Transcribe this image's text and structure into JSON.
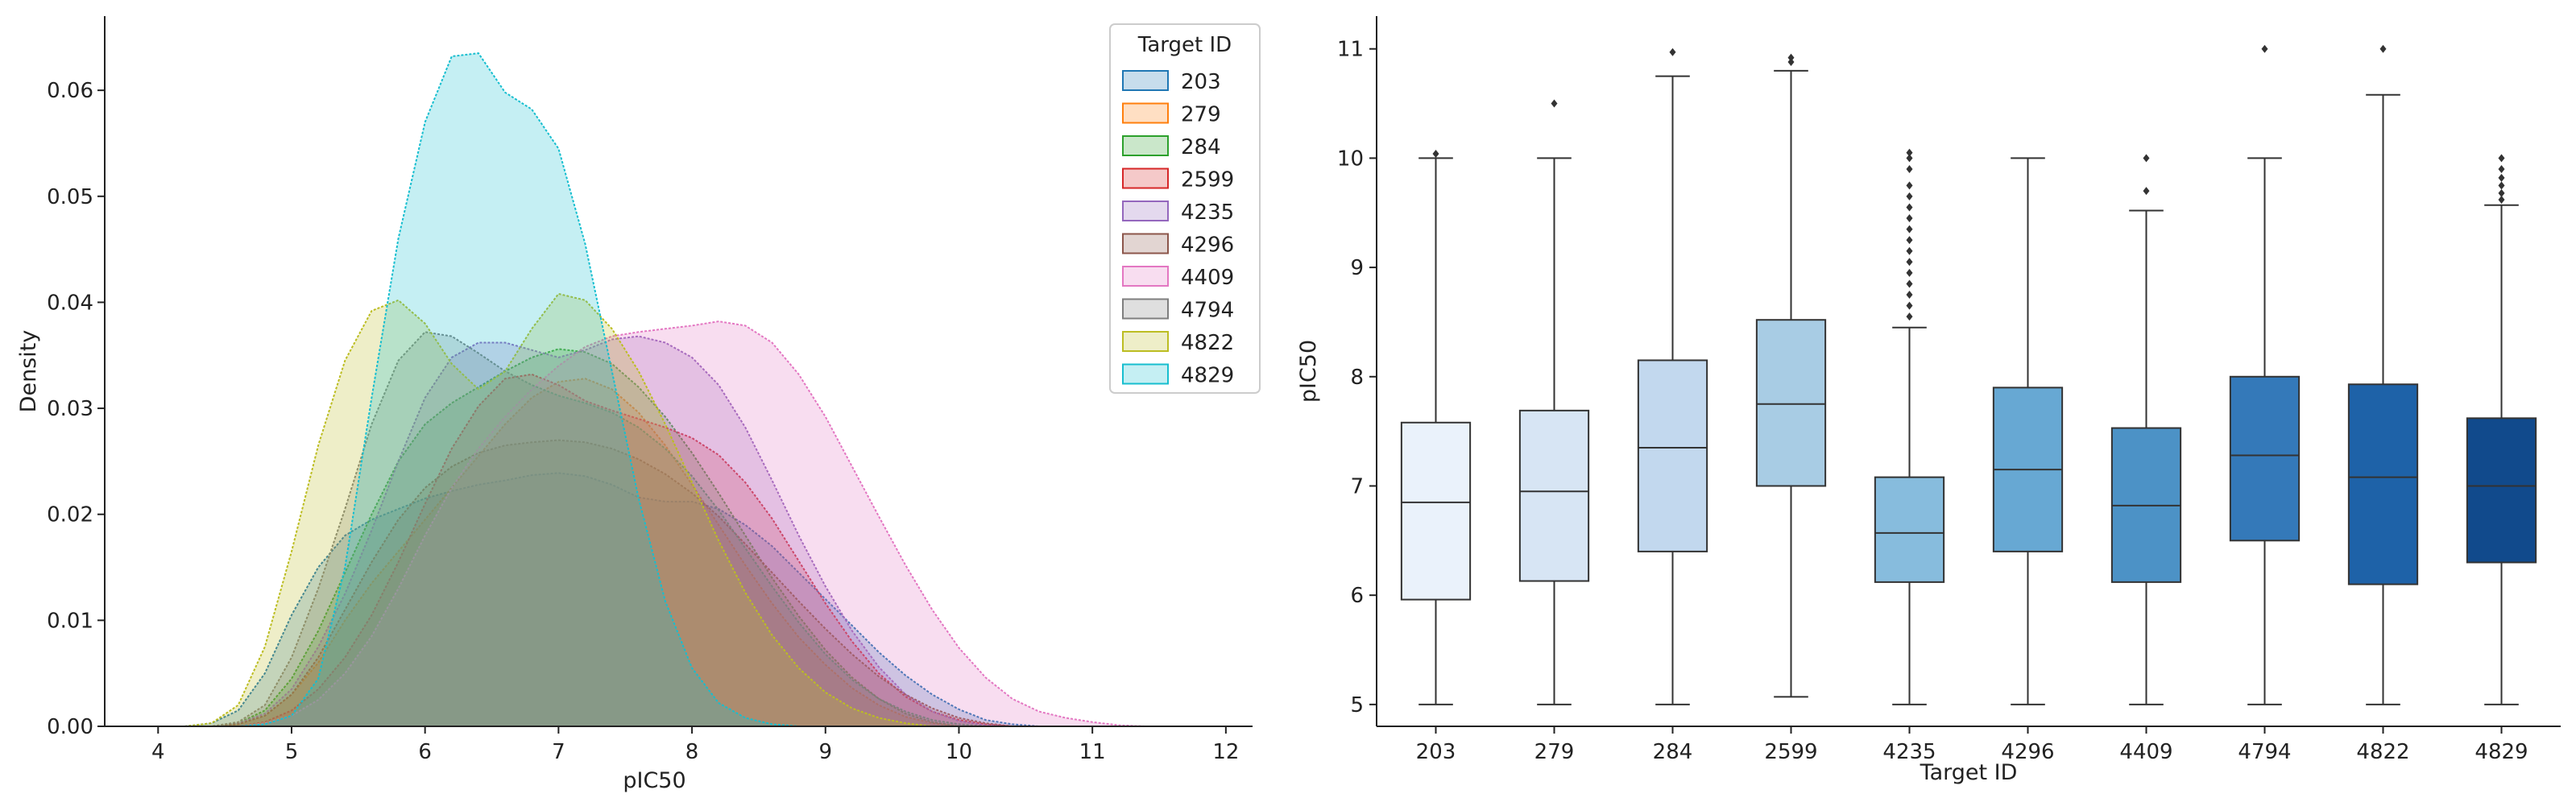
{
  "chart_data": [
    {
      "type": "area",
      "subtype": "kde",
      "title": "",
      "xlabel": "pIC50",
      "ylabel": "Density",
      "xlim": [
        3.6,
        12.2
      ],
      "ylim": [
        0,
        0.067
      ],
      "xticks": [
        4,
        5,
        6,
        7,
        8,
        9,
        10,
        11,
        12
      ],
      "yticks": [
        0.0,
        0.01,
        0.02,
        0.03,
        0.04,
        0.05,
        0.06
      ],
      "ytick_labels": [
        "0.00",
        "0.01",
        "0.02",
        "0.03",
        "0.04",
        "0.05",
        "0.06"
      ],
      "legend_title": "Target ID",
      "legend_position": "top-right",
      "x": [
        4.2,
        4.4,
        4.6,
        4.8,
        5.0,
        5.2,
        5.4,
        5.6,
        5.8,
        6.0,
        6.2,
        6.4,
        6.6,
        6.8,
        7.0,
        7.2,
        7.4,
        7.6,
        7.8,
        8.0,
        8.2,
        8.4,
        8.6,
        8.8,
        9.0,
        9.2,
        9.4,
        9.6,
        9.8,
        10.0,
        10.2,
        10.4,
        10.6,
        10.8,
        11.0,
        11.2,
        11.4
      ],
      "series": [
        {
          "name": "203",
          "color": "#1f77b4",
          "values": [
            0,
            0.0003,
            0.0015,
            0.005,
            0.0105,
            0.015,
            0.018,
            0.0195,
            0.0205,
            0.0215,
            0.0222,
            0.0228,
            0.0232,
            0.0237,
            0.0239,
            0.0236,
            0.0228,
            0.0216,
            0.0212,
            0.0212,
            0.0205,
            0.019,
            0.017,
            0.0145,
            0.012,
            0.0095,
            0.007,
            0.0048,
            0.003,
            0.0016,
            0.0006,
            0.0002,
            0,
            0,
            0,
            0,
            0
          ]
        },
        {
          "name": "279",
          "color": "#ff7f0e",
          "values": [
            0,
            0,
            0.0002,
            0.001,
            0.003,
            0.006,
            0.01,
            0.0135,
            0.0165,
            0.0195,
            0.0225,
            0.0255,
            0.0285,
            0.031,
            0.0325,
            0.0328,
            0.0318,
            0.0296,
            0.0265,
            0.0228,
            0.019,
            0.0152,
            0.0116,
            0.0084,
            0.0058,
            0.0036,
            0.002,
            0.0009,
            0.0003,
            0,
            0,
            0,
            0,
            0,
            0,
            0,
            0
          ]
        },
        {
          "name": "284",
          "color": "#2ca02c",
          "values": [
            0,
            0,
            0.0003,
            0.0015,
            0.0045,
            0.009,
            0.0145,
            0.02,
            0.025,
            0.0285,
            0.0305,
            0.032,
            0.0335,
            0.0348,
            0.0356,
            0.0353,
            0.0342,
            0.032,
            0.0292,
            0.0258,
            0.022,
            0.018,
            0.014,
            0.0104,
            0.0072,
            0.0046,
            0.0026,
            0.0012,
            0.0004,
            0,
            0,
            0,
            0,
            0,
            0,
            0,
            0
          ]
        },
        {
          "name": "2599",
          "color": "#d62728",
          "values": [
            0,
            0,
            0,
            0.0004,
            0.0015,
            0.0035,
            0.0065,
            0.0105,
            0.0155,
            0.021,
            0.0262,
            0.0302,
            0.0328,
            0.0332,
            0.0322,
            0.0307,
            0.0298,
            0.029,
            0.0282,
            0.0272,
            0.0256,
            0.023,
            0.0196,
            0.0156,
            0.0116,
            0.008,
            0.005,
            0.0028,
            0.0014,
            0.0006,
            0.0002,
            0,
            0,
            0,
            0,
            0,
            0
          ]
        },
        {
          "name": "4235",
          "color": "#9467bd",
          "values": [
            0,
            0,
            0.0003,
            0.0012,
            0.0035,
            0.0075,
            0.0125,
            0.0185,
            0.025,
            0.031,
            0.0348,
            0.0362,
            0.0362,
            0.0355,
            0.0348,
            0.0355,
            0.0365,
            0.0368,
            0.0362,
            0.0348,
            0.0322,
            0.0282,
            0.0232,
            0.018,
            0.0132,
            0.009,
            0.0056,
            0.003,
            0.0014,
            0.0005,
            0.0001,
            0,
            0,
            0,
            0,
            0,
            0
          ]
        },
        {
          "name": "4296",
          "color": "#8c564b",
          "values": [
            0,
            0,
            0.0002,
            0.001,
            0.003,
            0.0065,
            0.011,
            0.0155,
            0.0195,
            0.0225,
            0.0245,
            0.0258,
            0.0265,
            0.0268,
            0.027,
            0.0268,
            0.0262,
            0.0252,
            0.0238,
            0.022,
            0.0198,
            0.0172,
            0.0145,
            0.0118,
            0.0092,
            0.0068,
            0.0047,
            0.003,
            0.0017,
            0.0008,
            0.0003,
            0,
            0,
            0,
            0,
            0,
            0
          ]
        },
        {
          "name": "4409",
          "color": "#e377c2",
          "values": [
            0,
            0,
            0,
            0.0003,
            0.001,
            0.0025,
            0.005,
            0.0085,
            0.013,
            0.018,
            0.0225,
            0.0262,
            0.0292,
            0.0318,
            0.034,
            0.0358,
            0.0368,
            0.0372,
            0.0375,
            0.0378,
            0.0382,
            0.0378,
            0.0362,
            0.0332,
            0.0292,
            0.0245,
            0.0198,
            0.0152,
            0.011,
            0.0074,
            0.0046,
            0.0026,
            0.0014,
            0.0008,
            0.0004,
            0.0001,
            0
          ]
        },
        {
          "name": "4794",
          "color": "#7f7f7f",
          "values": [
            0,
            0,
            0.0004,
            0.002,
            0.0065,
            0.013,
            0.0205,
            0.0285,
            0.0345,
            0.0372,
            0.0368,
            0.0352,
            0.0335,
            0.0322,
            0.0312,
            0.0305,
            0.0296,
            0.0282,
            0.0262,
            0.0236,
            0.0204,
            0.0168,
            0.0132,
            0.0098,
            0.0068,
            0.0044,
            0.0026,
            0.0014,
            0.0006,
            0.0002,
            0,
            0,
            0,
            0,
            0,
            0,
            0
          ]
        },
        {
          "name": "4822",
          "color": "#bcbd22",
          "values": [
            0,
            0.0003,
            0.002,
            0.0075,
            0.0165,
            0.0265,
            0.0345,
            0.0392,
            0.0402,
            0.038,
            0.0342,
            0.0318,
            0.0335,
            0.0375,
            0.0408,
            0.0402,
            0.0375,
            0.0335,
            0.0285,
            0.023,
            0.0175,
            0.0126,
            0.0086,
            0.0055,
            0.0032,
            0.0017,
            0.0008,
            0.0003,
            0,
            0,
            0,
            0,
            0,
            0,
            0,
            0,
            0
          ]
        },
        {
          "name": "4829",
          "color": "#17becf",
          "values": [
            0,
            0,
            0,
            0.0002,
            0.001,
            0.0045,
            0.015,
            0.031,
            0.046,
            0.057,
            0.0632,
            0.0635,
            0.0598,
            0.0582,
            0.0545,
            0.0455,
            0.0335,
            0.0215,
            0.0118,
            0.0055,
            0.0022,
            0.0008,
            0.0002,
            0,
            0,
            0,
            0,
            0,
            0,
            0,
            0,
            0,
            0,
            0,
            0,
            0,
            0
          ]
        }
      ]
    },
    {
      "type": "box",
      "title": "",
      "xlabel": "Target ID",
      "ylabel": "pIC50",
      "ylim": [
        4.8,
        11.3
      ],
      "yticks": [
        5,
        6,
        7,
        8,
        9,
        10,
        11
      ],
      "categories": [
        "203",
        "279",
        "284",
        "2599",
        "4235",
        "4296",
        "4409",
        "4794",
        "4822",
        "4829"
      ],
      "colors": [
        "#eaf2fb",
        "#d7e5f4",
        "#c2d8ee",
        "#a8cce4",
        "#87bcdd",
        "#67a8d3",
        "#4c92c6",
        "#3479b9",
        "#1e62a8",
        "#114a8c"
      ],
      "boxes": [
        {
          "whisker_low": 5.0,
          "q1": 5.96,
          "median": 6.85,
          "q3": 7.58,
          "whisker_high": 10.0,
          "outliers": [
            10.04
          ]
        },
        {
          "whisker_low": 5.0,
          "q1": 6.13,
          "median": 6.95,
          "q3": 7.69,
          "whisker_high": 10.0,
          "outliers": [
            10.5
          ]
        },
        {
          "whisker_low": 5.0,
          "q1": 6.4,
          "median": 7.35,
          "q3": 8.15,
          "whisker_high": 10.75,
          "outliers": [
            10.97
          ]
        },
        {
          "whisker_low": 5.07,
          "q1": 7.0,
          "median": 7.75,
          "q3": 8.52,
          "whisker_high": 10.8,
          "outliers": [
            10.88,
            10.92
          ]
        },
        {
          "whisker_low": 5.0,
          "q1": 6.12,
          "median": 6.57,
          "q3": 7.08,
          "whisker_high": 8.45,
          "outliers": [
            8.55,
            8.65,
            8.75,
            8.85,
            8.95,
            9.05,
            9.15,
            9.25,
            9.35,
            9.45,
            9.55,
            9.65,
            9.75,
            9.9,
            10.0,
            10.05
          ]
        },
        {
          "whisker_low": 5.0,
          "q1": 6.4,
          "median": 7.15,
          "q3": 7.9,
          "whisker_high": 10.0,
          "outliers": []
        },
        {
          "whisker_low": 5.0,
          "q1": 6.12,
          "median": 6.82,
          "q3": 7.53,
          "whisker_high": 9.52,
          "outliers": [
            9.7,
            10.0
          ]
        },
        {
          "whisker_low": 5.0,
          "q1": 6.5,
          "median": 7.28,
          "q3": 8.0,
          "whisker_high": 10.0,
          "outliers": [
            11.0
          ]
        },
        {
          "whisker_low": 5.0,
          "q1": 6.1,
          "median": 7.08,
          "q3": 7.93,
          "whisker_high": 10.58,
          "outliers": [
            11.0
          ]
        },
        {
          "whisker_low": 5.0,
          "q1": 6.3,
          "median": 7.0,
          "q3": 7.62,
          "whisker_high": 9.57,
          "outliers": [
            9.62,
            9.68,
            9.75,
            9.82,
            9.9,
            10.0
          ]
        }
      ]
    }
  ]
}
